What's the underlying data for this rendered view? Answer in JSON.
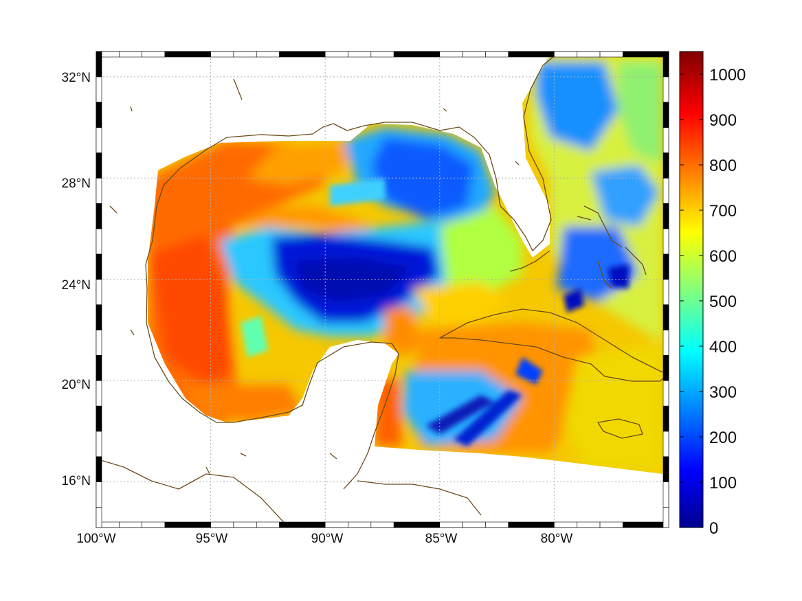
{
  "map": {
    "lon_range": [
      -100,
      -75
    ],
    "lat_range": [
      14.2,
      33
    ],
    "lat_ticks": [
      {
        "value": 32,
        "label": "32°N"
      },
      {
        "value": 28,
        "label": "28°N"
      },
      {
        "value": 24,
        "label": "24°N"
      },
      {
        "value": 20,
        "label": "20°N"
      },
      {
        "value": 16,
        "label": "16°N"
      }
    ],
    "lon_ticks": [
      {
        "value": -100,
        "label": "100°W"
      },
      {
        "value": -95,
        "label": "95°W"
      },
      {
        "value": -90,
        "label": "90°W"
      },
      {
        "value": -85,
        "label": "85°W"
      },
      {
        "value": -80,
        "label": "80°W"
      }
    ],
    "grid": true,
    "grid_style": "dotted",
    "frame_style": "black-white checkered border",
    "coastline_color": "#6b4a1a",
    "land_color": "#ffffff",
    "region": "Gulf of Mexico and western Caribbean",
    "colormap": "jet"
  },
  "colorbar": {
    "min": 0,
    "max": 1050,
    "ticks": [
      {
        "value": 1000,
        "label": "1000"
      },
      {
        "value": 900,
        "label": "900"
      },
      {
        "value": 800,
        "label": "800"
      },
      {
        "value": 700,
        "label": "700"
      },
      {
        "value": 600,
        "label": "600"
      },
      {
        "value": 500,
        "label": "500"
      },
      {
        "value": 400,
        "label": "400"
      },
      {
        "value": 300,
        "label": "300"
      },
      {
        "value": 200,
        "label": "200"
      },
      {
        "value": 100,
        "label": "100"
      },
      {
        "value": 0,
        "label": "0"
      }
    ],
    "colors": [
      "#00008f",
      "#0000ff",
      "#00ffff",
      "#ffff00",
      "#ff0000",
      "#800000"
    ]
  },
  "field_regions": [
    {
      "name": "western-gulf",
      "level": 820
    },
    {
      "name": "northern-gulf-shelf",
      "level": 760
    },
    {
      "name": "central-gulf-low",
      "level": 90
    },
    {
      "name": "eastern-gulf-mixed",
      "level": 300
    },
    {
      "name": "yucatan-channel",
      "level": 720
    },
    {
      "name": "caribbean-south-band",
      "level": 780
    },
    {
      "name": "caribbean-low-streaks",
      "level": 100
    },
    {
      "name": "atlantic-east",
      "level": 560
    },
    {
      "name": "bahamas-low",
      "level": 200
    }
  ]
}
